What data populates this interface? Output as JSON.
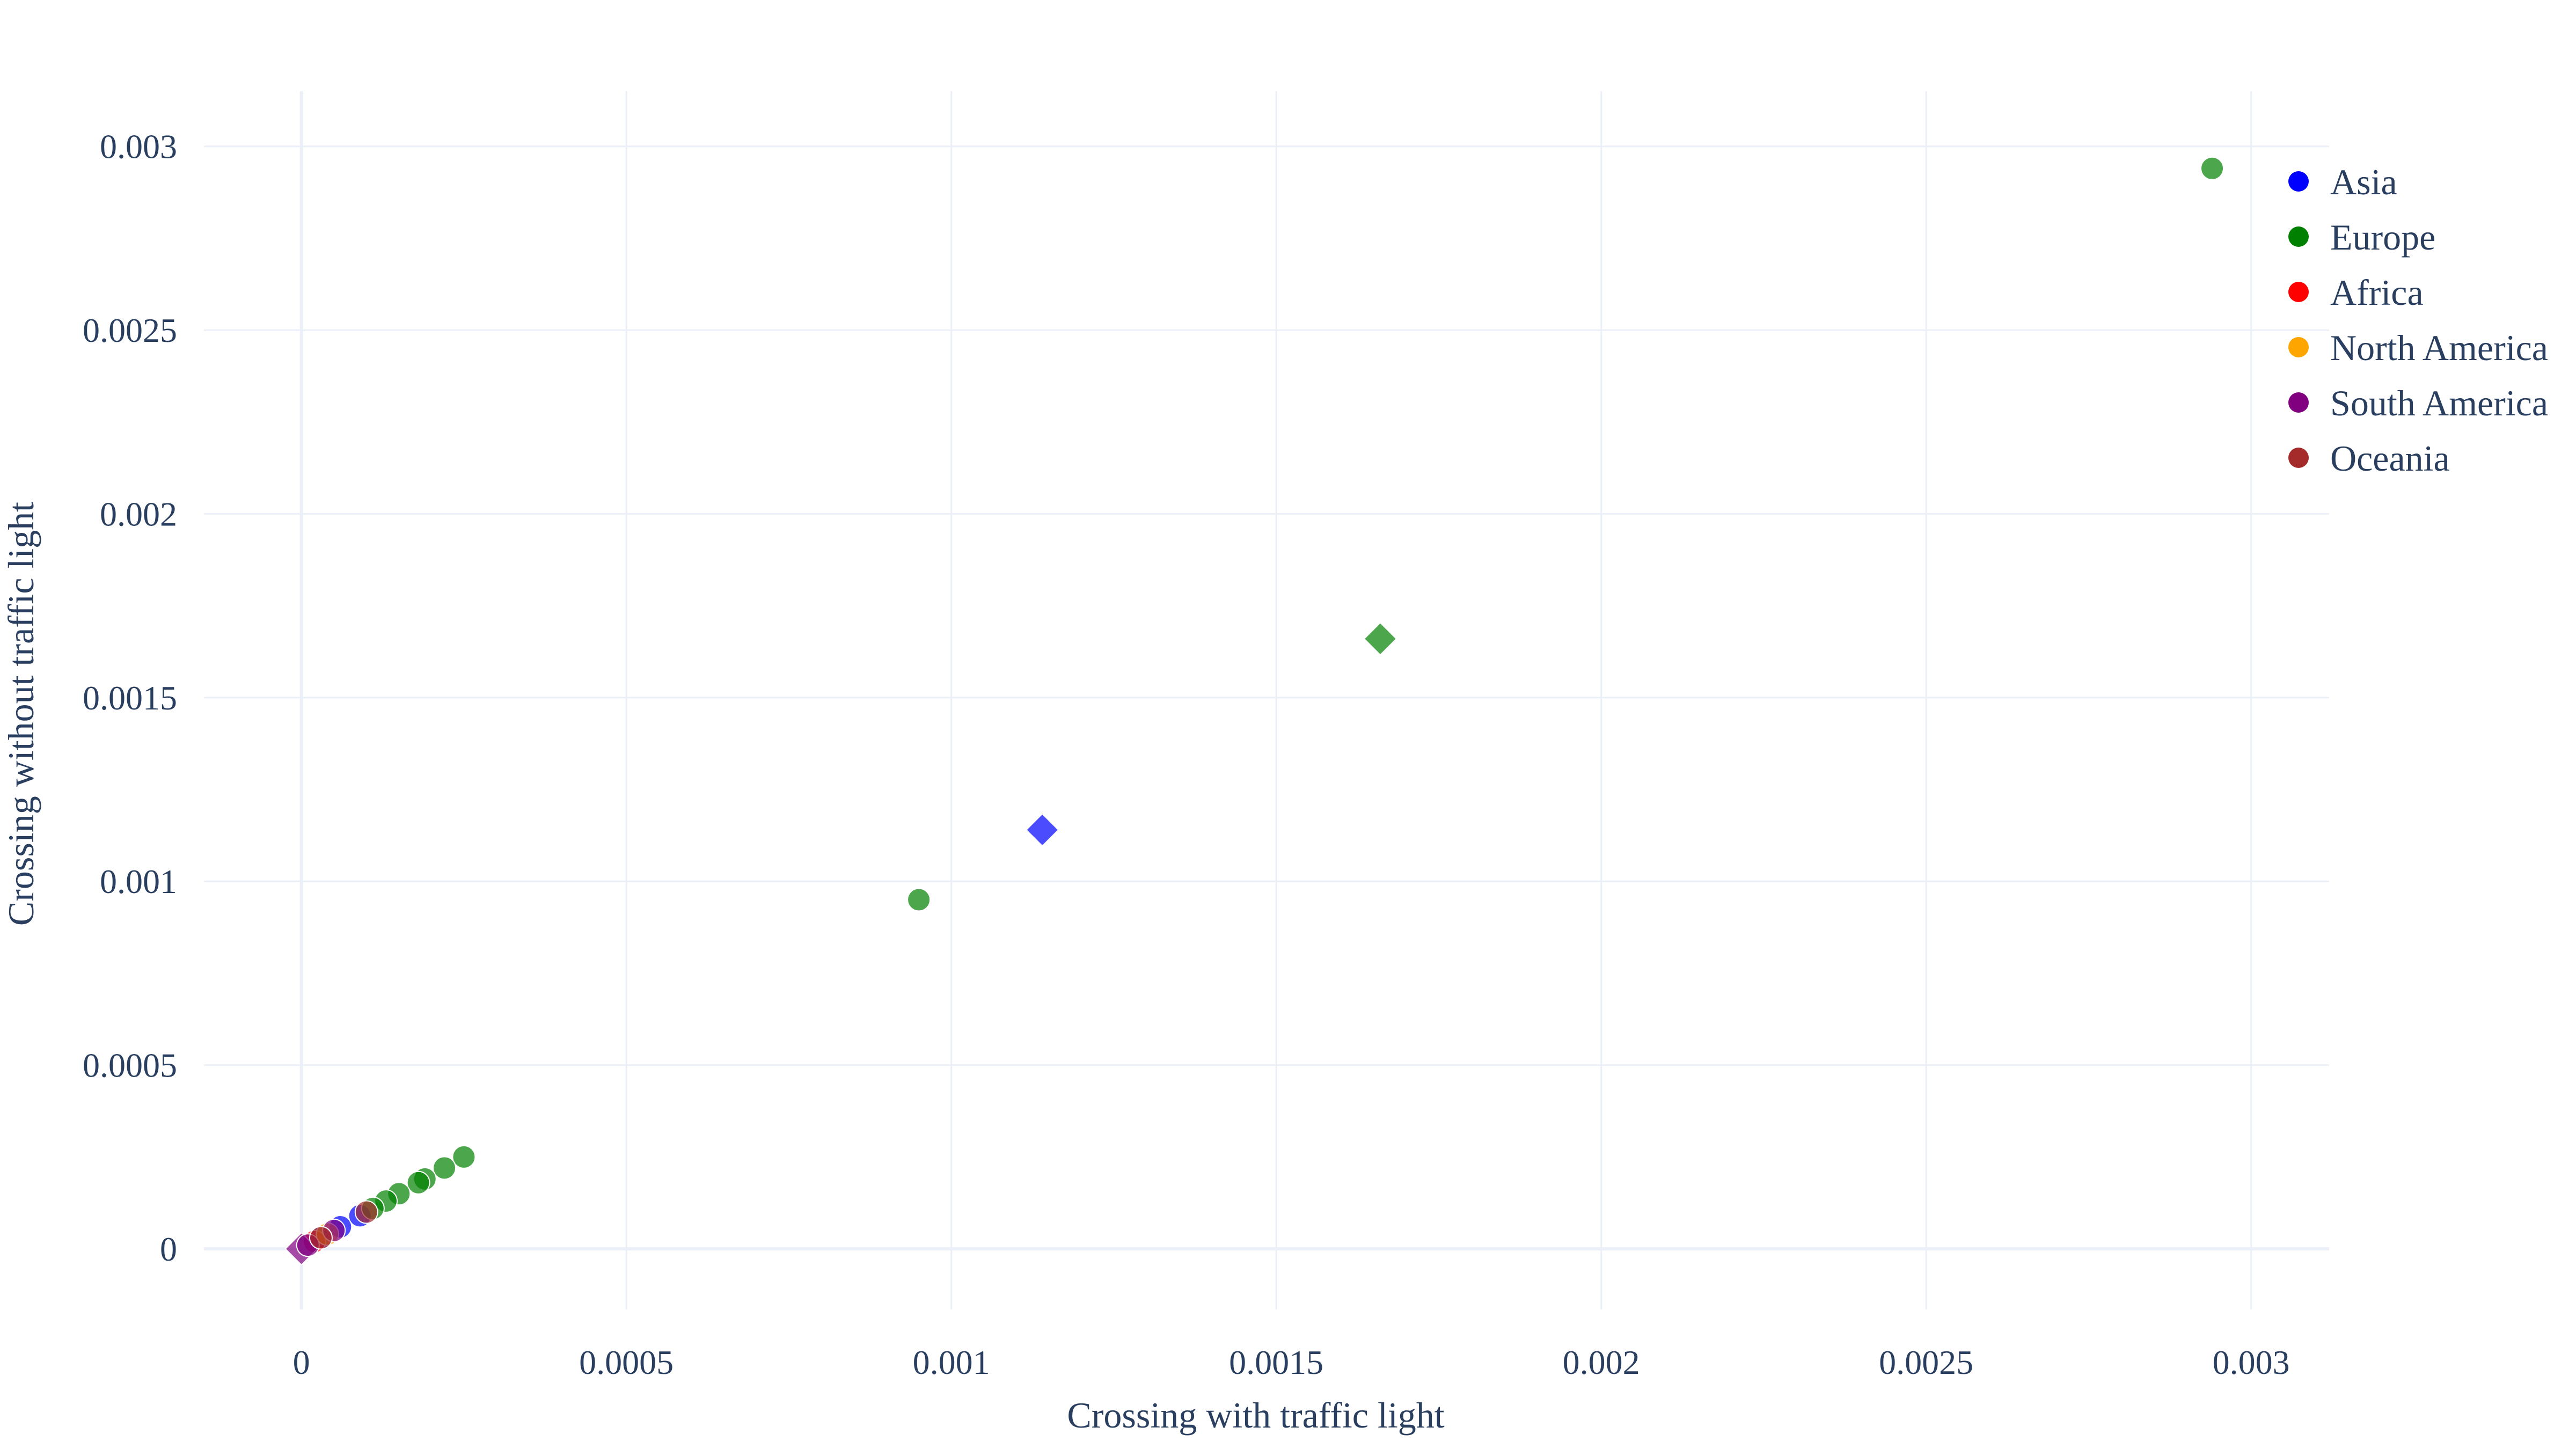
{
  "chart_data": {
    "type": "scatter",
    "title": "",
    "xlabel": "Crossing with traffic light",
    "ylabel": "Crossing without traffic light",
    "xlim": [
      -0.00015,
      0.00312
    ],
    "ylim": [
      -0.000165,
      0.00315
    ],
    "x_ticks": [
      0,
      0.0005,
      0.001,
      0.0015,
      0.002,
      0.0025,
      0.003
    ],
    "x_tick_labels": [
      "0",
      "0.0005",
      "0.001",
      "0.0015",
      "0.002",
      "0.0025",
      "0.003"
    ],
    "y_ticks": [
      0,
      0.0005,
      0.001,
      0.0015,
      0.002,
      0.0025,
      0.003
    ],
    "y_tick_labels": [
      "0",
      "0.0005",
      "0.001",
      "0.0015",
      "0.002",
      "0.0025",
      "0.003"
    ],
    "grid": true,
    "legend_position": "top-right",
    "series": [
      {
        "name": "Asia",
        "color": "#0000ff",
        "points": [
          {
            "x": 0.00114,
            "y": 0.00114,
            "symbol": "diamond"
          },
          {
            "x": 6e-05,
            "y": 6e-05,
            "symbol": "circle"
          },
          {
            "x": 9e-05,
            "y": 9e-05,
            "symbol": "circle"
          },
          {
            "x": 3e-05,
            "y": 3e-05,
            "symbol": "circle"
          }
        ]
      },
      {
        "name": "Europe",
        "color": "#008000",
        "points": [
          {
            "x": 0.00294,
            "y": 0.00294,
            "symbol": "circle"
          },
          {
            "x": 0.00166,
            "y": 0.00166,
            "symbol": "diamond"
          },
          {
            "x": 0.00095,
            "y": 0.00095,
            "symbol": "circle"
          },
          {
            "x": 0.00025,
            "y": 0.00025,
            "symbol": "circle"
          },
          {
            "x": 0.00022,
            "y": 0.00022,
            "symbol": "circle"
          },
          {
            "x": 0.00019,
            "y": 0.00019,
            "symbol": "circle"
          },
          {
            "x": 0.00018,
            "y": 0.00018,
            "symbol": "circle"
          },
          {
            "x": 0.00015,
            "y": 0.00015,
            "symbol": "circle"
          },
          {
            "x": 0.00013,
            "y": 0.00013,
            "symbol": "circle"
          },
          {
            "x": 0.00011,
            "y": 0.00011,
            "symbol": "circle"
          }
        ]
      },
      {
        "name": "Africa",
        "color": "#ff0000",
        "points": [
          {
            "x": 2e-05,
            "y": 2e-05,
            "symbol": "circle"
          }
        ]
      },
      {
        "name": "North America",
        "color": "#ffa500",
        "points": [
          {
            "x": 4e-05,
            "y": 4e-05,
            "symbol": "circle"
          }
        ]
      },
      {
        "name": "South America",
        "color": "#800080",
        "points": [
          {
            "x": 0.0,
            "y": 0.0,
            "symbol": "diamond"
          },
          {
            "x": 5e-05,
            "y": 5e-05,
            "symbol": "circle"
          },
          {
            "x": 1e-05,
            "y": 1e-05,
            "symbol": "circle"
          }
        ]
      },
      {
        "name": "Oceania",
        "color": "#a52a2a",
        "points": [
          {
            "x": 0.0001,
            "y": 0.0001,
            "symbol": "circle"
          },
          {
            "x": 3e-05,
            "y": 3e-05,
            "symbol": "circle"
          }
        ]
      }
    ]
  }
}
